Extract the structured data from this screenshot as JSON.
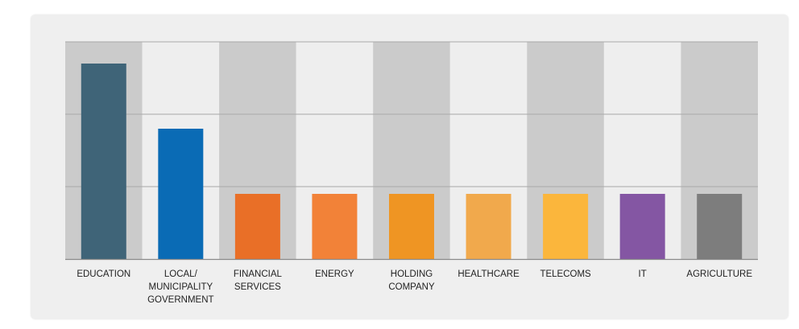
{
  "chart_data": {
    "type": "bar",
    "categories": [
      [
        "EDUCATION"
      ],
      [
        "LOCAL/",
        "MUNICIPALITY",
        "GOVERNMENT"
      ],
      [
        "FINANCIAL",
        "SERVICES"
      ],
      [
        "ENERGY"
      ],
      [
        "HOLDING",
        "COMPANY"
      ],
      [
        "HEALTHCARE"
      ],
      [
        "TELECOMS"
      ],
      [
        "IT"
      ],
      [
        "AGRICULTURE"
      ]
    ],
    "values": [
      27,
      18,
      9,
      9,
      9,
      9,
      9,
      9,
      9
    ],
    "ylim": [
      0,
      30
    ],
    "yticks": [
      0,
      10,
      20,
      30
    ],
    "grid": true,
    "bar_colors": [
      "#3f6478",
      "#0a6bb5",
      "#e96f27",
      "#f28238",
      "#ef9523",
      "#f1a94c",
      "#fbb63c",
      "#8456a3",
      "#7d7d7d"
    ],
    "stripe_colors": [
      "#cbcbcb",
      "#eeeeee"
    ]
  }
}
